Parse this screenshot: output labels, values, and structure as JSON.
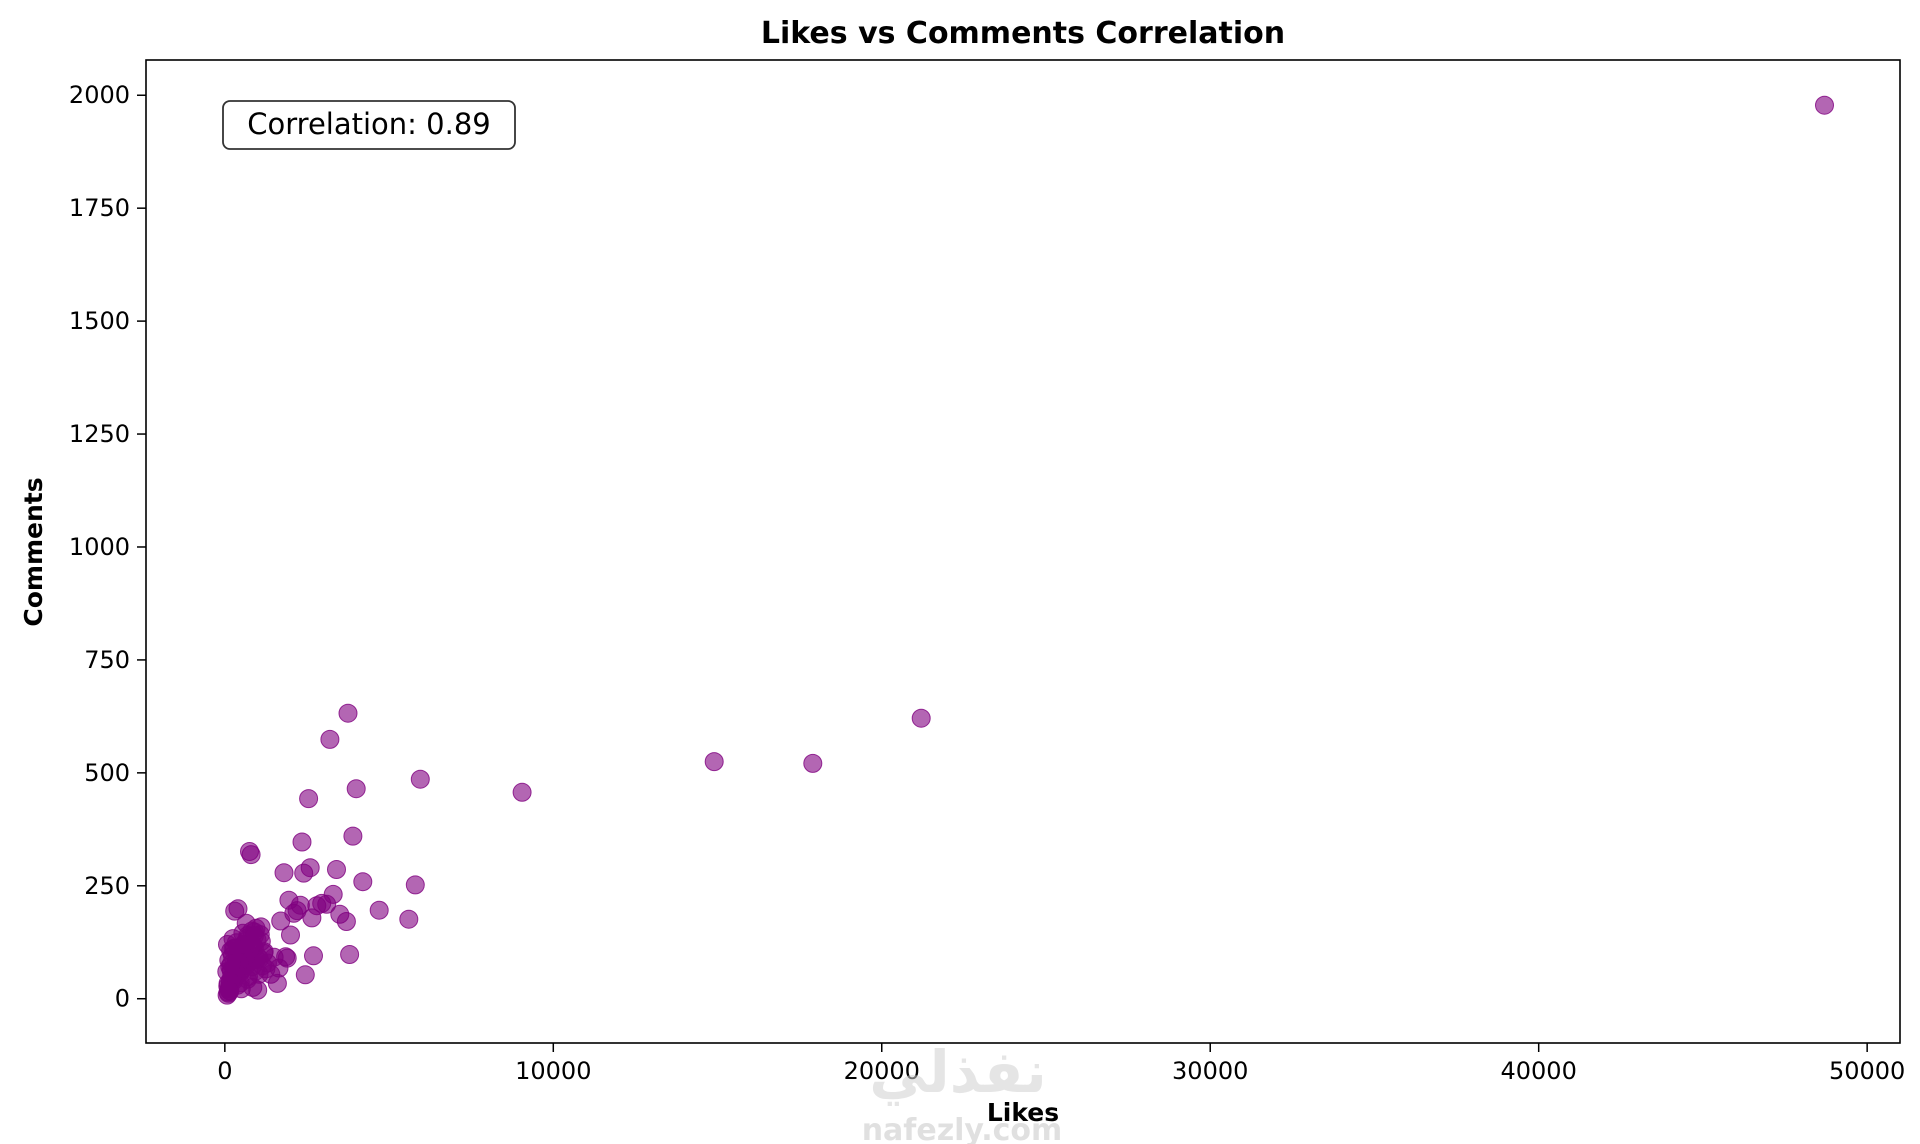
{
  "chart_data": {
    "type": "scatter",
    "title": "Likes vs Comments Correlation",
    "xlabel": "Likes",
    "ylabel": "Comments",
    "xlim": [
      -2400,
      51000
    ],
    "ylim": [
      -98,
      2078
    ],
    "xticks": [
      0,
      10000,
      20000,
      30000,
      40000,
      50000
    ],
    "yticks": [
      0,
      250,
      500,
      750,
      1000,
      1250,
      1500,
      1750,
      2000
    ],
    "grid": false,
    "legend": "none",
    "marker_color": "#800080",
    "marker_alpha": 0.6,
    "annotation": "Correlation: 0.89",
    "watermark": {
      "arabic": "نفذلي",
      "latin": "nafezly.com"
    },
    "x": [
      48700,
      21200,
      17900,
      14900,
      9050,
      5950,
      5800,
      5600,
      4700,
      4200,
      4000,
      3900,
      3800,
      3750,
      3700,
      3500,
      3400,
      3300,
      3200,
      3100,
      2950,
      2800,
      2700,
      2650,
      2600,
      2550,
      2450,
      2400,
      2350,
      2300,
      2200,
      2100,
      2000,
      1950,
      1900,
      1850,
      1800,
      1700,
      1650,
      1600,
      1500,
      1400,
      1300,
      1200,
      1100,
      1000,
      950,
      900,
      850,
      800,
      750,
      700,
      650,
      600,
      550,
      500,
      450,
      400,
      350,
      300,
      280,
      250,
      200,
      180,
      150,
      120,
      100,
      80,
      60,
      1050,
      980,
      900,
      820,
      760,
      700,
      640,
      580,
      520,
      460,
      400,
      350,
      300,
      250,
      200,
      150,
      110,
      90,
      70,
      1150,
      1080,
      1000,
      930,
      860,
      790,
      720,
      650,
      590,
      530,
      470,
      420,
      370,
      320,
      270,
      230,
      190,
      160,
      130,
      100,
      1250,
      1180,
      1110,
      1040,
      970,
      900,
      830,
      760,
      690,
      630,
      570,
      510,
      450,
      390,
      340,
      290,
      240,
      200,
      170,
      140
    ],
    "y": [
      1978,
      621,
      521,
      525,
      457,
      486,
      252,
      176,
      196,
      259,
      465,
      360,
      98,
      632,
      171,
      187,
      286,
      231,
      574,
      209,
      211,
      206,
      95,
      179,
      290,
      443,
      53,
      278,
      347,
      207,
      195,
      189,
      141,
      218,
      90,
      93,
      279,
      172,
      68,
      34,
      92,
      54,
      79,
      104,
      159,
      19,
      156,
      148,
      25,
      319,
      326,
      135,
      167,
      110,
      145,
      22,
      96,
      199,
      124,
      194,
      45,
      133,
      62,
      106,
      17,
      85,
      34,
      120,
      60,
      88,
      130,
      112,
      150,
      98,
      140,
      73,
      118,
      92,
      57,
      103,
      80,
      66,
      110,
      47,
      71,
      12,
      28,
      8,
      73,
      142,
      93,
      61,
      118,
      84,
      49,
      128,
      76,
      101,
      35,
      89,
      53,
      72,
      40,
      95,
      63,
      29,
      22,
      15,
      66,
      101,
      127,
      54,
      87,
      139,
      71,
      108,
      43,
      92,
      120,
      64,
      81,
      30,
      58,
      112,
      49,
      77,
      38,
      18
    ]
  }
}
